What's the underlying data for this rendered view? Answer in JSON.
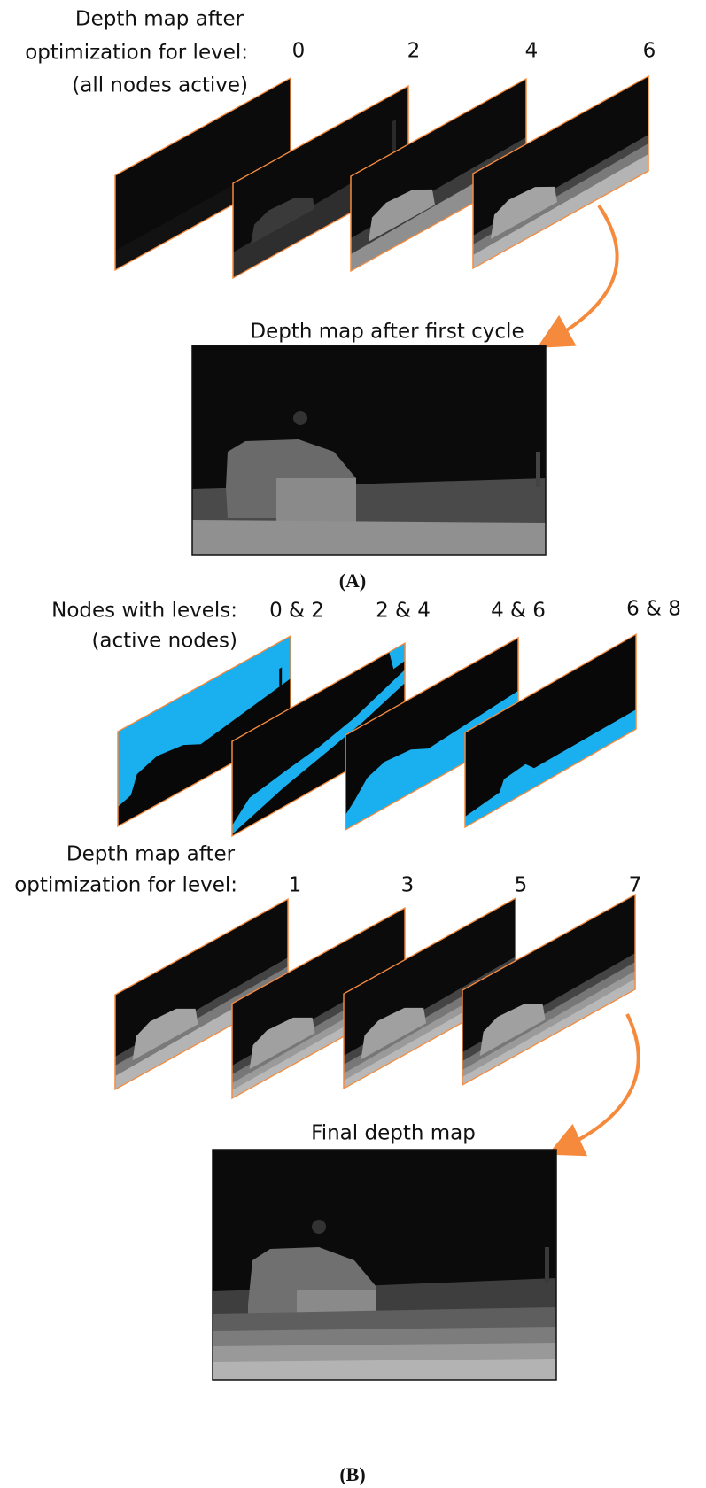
{
  "panel_a": {
    "heading": [
      "Depth map after",
      "optimization for level:",
      "(all nodes active)"
    ],
    "levels": [
      "0",
      "2",
      "4",
      "6"
    ],
    "result_caption": "Depth map after first cycle",
    "label": "(A)"
  },
  "panel_b": {
    "nodes_heading": [
      "Nodes with levels:",
      "(active nodes)"
    ],
    "node_levels": [
      "0 & 2",
      "2 & 4",
      "4 & 6",
      "6 & 8"
    ],
    "depth_heading": [
      "Depth map after",
      "optimization for level:"
    ],
    "levels": [
      "1",
      "3",
      "5",
      "7"
    ],
    "result_caption": "Final depth map",
    "label": "(B)"
  }
}
